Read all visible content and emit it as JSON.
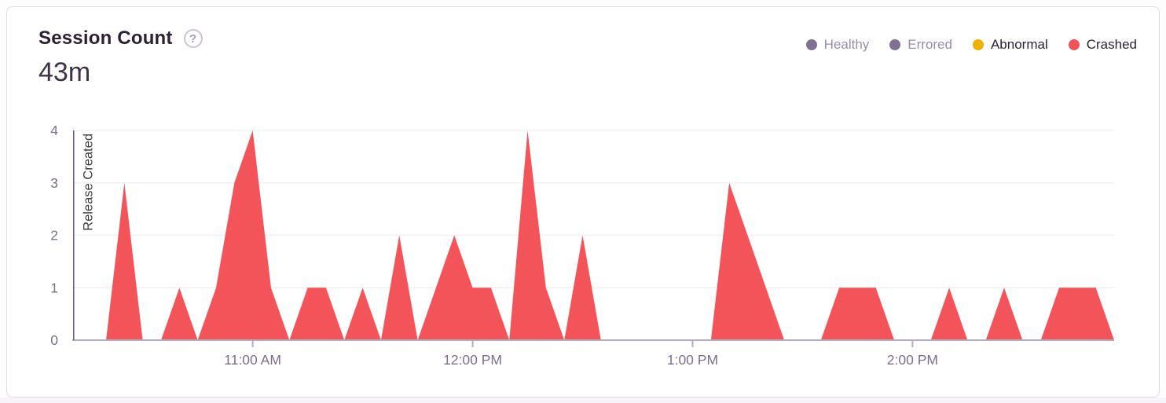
{
  "card": {
    "title": "Session Count",
    "help_icon_glyph": "?",
    "total_sessions": "43m",
    "legend": {
      "items": [
        {
          "label": "Healthy",
          "dot_color": "#7E7194",
          "text_color": "#968DA8",
          "selected": false
        },
        {
          "label": "Errored",
          "dot_color": "#7E7194",
          "text_color": "#968DA8",
          "selected": false
        },
        {
          "label": "Abnormal",
          "dot_color": "#F0B000",
          "text_color": "#2B2233",
          "selected": true
        },
        {
          "label": "Crashed",
          "dot_color": "#F2545A",
          "text_color": "#2B2233",
          "selected": true
        }
      ]
    }
  },
  "chart_data": {
    "type": "area",
    "title": "Session Count",
    "xlabel": "",
    "ylabel": "",
    "y_ticks": [
      0,
      1,
      2,
      3,
      4
    ],
    "ylim": [
      0,
      4
    ],
    "x_range": [
      "10:11",
      "14:55"
    ],
    "x_ticks": [
      {
        "time": "11:00",
        "label": "11:00 AM"
      },
      {
        "time": "12:00",
        "label": "12:00 PM"
      },
      {
        "time": "13:00",
        "label": "1:00 PM"
      },
      {
        "time": "14:00",
        "label": "2:00 PM"
      }
    ],
    "grid": "horizontal",
    "legend_position": "top-right",
    "annotation": {
      "label": "Release Created",
      "time": "10:11"
    },
    "series": [
      {
        "name": "Crashed",
        "color": "#F2545A",
        "points": [
          [
            "10:11",
            0
          ],
          [
            "10:15",
            0
          ],
          [
            "10:20",
            0
          ],
          [
            "10:25",
            3
          ],
          [
            "10:30",
            0
          ],
          [
            "10:35",
            0
          ],
          [
            "10:40",
            1
          ],
          [
            "10:45",
            0
          ],
          [
            "10:50",
            1
          ],
          [
            "10:55",
            3
          ],
          [
            "11:00",
            4
          ],
          [
            "11:05",
            1
          ],
          [
            "11:10",
            0
          ],
          [
            "11:15",
            1
          ],
          [
            "11:20",
            1
          ],
          [
            "11:25",
            0
          ],
          [
            "11:30",
            1
          ],
          [
            "11:35",
            0
          ],
          [
            "11:40",
            2
          ],
          [
            "11:45",
            0
          ],
          [
            "11:50",
            1
          ],
          [
            "11:55",
            2
          ],
          [
            "12:00",
            1
          ],
          [
            "12:05",
            1
          ],
          [
            "12:10",
            0
          ],
          [
            "12:15",
            4
          ],
          [
            "12:20",
            1
          ],
          [
            "12:25",
            0
          ],
          [
            "12:30",
            2
          ],
          [
            "12:35",
            0
          ],
          [
            "12:40",
            0
          ],
          [
            "12:45",
            0
          ],
          [
            "12:50",
            0
          ],
          [
            "12:55",
            0
          ],
          [
            "13:00",
            0
          ],
          [
            "13:05",
            0
          ],
          [
            "13:10",
            3
          ],
          [
            "13:15",
            2
          ],
          [
            "13:20",
            1
          ],
          [
            "13:25",
            0
          ],
          [
            "13:30",
            0
          ],
          [
            "13:35",
            0
          ],
          [
            "13:40",
            1
          ],
          [
            "13:45",
            1
          ],
          [
            "13:50",
            1
          ],
          [
            "13:55",
            0
          ],
          [
            "14:00",
            0
          ],
          [
            "14:05",
            0
          ],
          [
            "14:10",
            1
          ],
          [
            "14:15",
            0
          ],
          [
            "14:20",
            0
          ],
          [
            "14:25",
            1
          ],
          [
            "14:30",
            0
          ],
          [
            "14:35",
            0
          ],
          [
            "14:40",
            1
          ],
          [
            "14:45",
            1
          ],
          [
            "14:50",
            1
          ],
          [
            "14:55",
            0
          ]
        ]
      }
    ],
    "colors": {
      "axis_line": "#B3ABBF",
      "grid_line": "#F2F0F5",
      "tick_label": "#7B6F8E",
      "release_line": "#6E6086",
      "release_label": "#3F3F3F"
    }
  }
}
